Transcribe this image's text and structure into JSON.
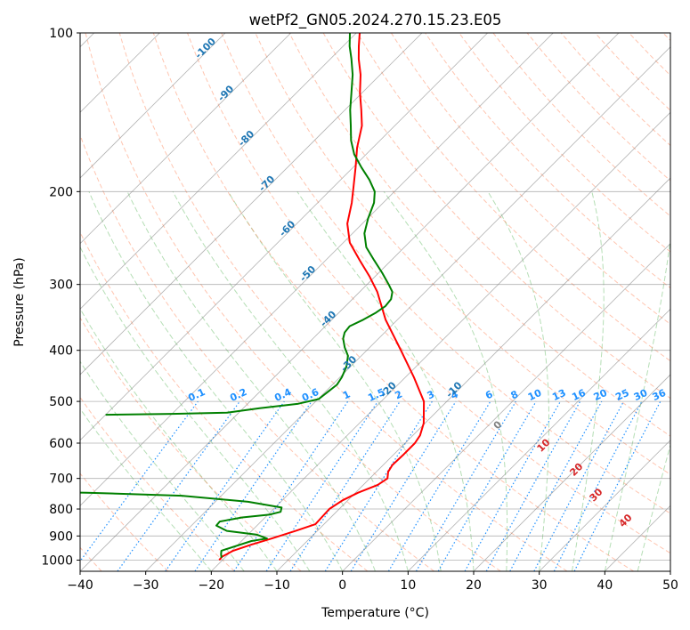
{
  "chart_data": {
    "type": "line",
    "title": "wetPf2_GN05.2024.270.15.23.E05",
    "xlabel": "Temperature (°C)",
    "ylabel": "Pressure (hPa)",
    "xlim": [
      -40,
      50
    ],
    "ylim": [
      1050,
      100
    ],
    "y_scale": "log",
    "skew": "skew-T",
    "grid": true,
    "x_ticks": [
      -40,
      -30,
      -20,
      -10,
      0,
      10,
      20,
      30,
      40,
      50
    ],
    "y_ticks": [
      100,
      200,
      300,
      400,
      500,
      600,
      700,
      800,
      900,
      1000
    ],
    "colors": {
      "temperature": "#ff0000",
      "dewpoint": "#008000",
      "dry_adiabat": "#ff7f50",
      "moist_adiabat": "#2ca02c",
      "mixing_ratio": "#1e90ff",
      "isotherm": "#808080",
      "dry_label": "#1f77b4",
      "moist_label": "#d62728"
    },
    "dry_adiabat_labels": [
      "-100",
      "-90",
      "-80",
      "-70",
      "-60",
      "-50",
      "-40",
      "-30",
      "-20",
      "-10"
    ],
    "mixing_ratio_labels": [
      "0.1",
      "0.2",
      "0.4",
      "0.6",
      "1",
      "1.5",
      "2",
      "3",
      "4",
      "6",
      "8",
      "10",
      "13",
      "16",
      "20",
      "25",
      "30",
      "36"
    ],
    "moist_adiabat_labels": [
      "0",
      "10",
      "20",
      "30",
      "40"
    ],
    "series": [
      {
        "key": "temperature",
        "points": [
          [
            -20.5,
            1000
          ],
          [
            -20.6,
            985
          ],
          [
            -19.8,
            960
          ],
          [
            -18.0,
            935
          ],
          [
            -15.8,
            910
          ],
          [
            -13.3,
            880
          ],
          [
            -11.3,
            855
          ],
          [
            -11.4,
            830
          ],
          [
            -11.5,
            800
          ],
          [
            -10.8,
            770
          ],
          [
            -9.6,
            745
          ],
          [
            -7.8,
            720
          ],
          [
            -7.3,
            700
          ],
          [
            -8.2,
            680
          ],
          [
            -8.6,
            660
          ],
          [
            -8.5,
            630
          ],
          [
            -8.5,
            600
          ],
          [
            -8.9,
            580
          ],
          [
            -10.2,
            550
          ],
          [
            -13.5,
            500
          ],
          [
            -18.7,
            450
          ],
          [
            -24.8,
            400
          ],
          [
            -31.8,
            350
          ],
          [
            -37.3,
            310
          ],
          [
            -40.8,
            290
          ],
          [
            -44.8,
            270
          ],
          [
            -49.0,
            250
          ],
          [
            -52.3,
            230
          ],
          [
            -54.8,
            210
          ],
          [
            -57.1,
            195
          ],
          [
            -59.6,
            180
          ],
          [
            -62.4,
            165
          ],
          [
            -65.0,
            150
          ],
          [
            -67.5,
            140
          ],
          [
            -70.3,
            130
          ],
          [
            -73.0,
            120
          ],
          [
            -75.7,
            112
          ],
          [
            -77.6,
            106
          ],
          [
            -79.5,
            100
          ]
        ]
      },
      {
        "key": "dewpoint",
        "points": [
          [
            -20.5,
            990
          ],
          [
            -21.1,
            975
          ],
          [
            -21.6,
            960
          ],
          [
            -18.5,
            920
          ],
          [
            -16.5,
            910
          ],
          [
            -18.6,
            895
          ],
          [
            -23.8,
            880
          ],
          [
            -26.2,
            860
          ],
          [
            -26.3,
            845
          ],
          [
            -23.5,
            830
          ],
          [
            -19.8,
            820
          ],
          [
            -18.5,
            810
          ],
          [
            -19.0,
            795
          ],
          [
            -25.0,
            775
          ],
          [
            -36.0,
            755
          ],
          [
            -51.0,
            745
          ],
          [
            -70.0,
            740
          ],
          [
            -79.0,
            740
          ]
        ]
      },
      {
        "key": "dewpoint",
        "points": [
          [
            -60.0,
            530
          ],
          [
            -50.0,
            528
          ],
          [
            -41.8,
            525
          ],
          [
            -37.5,
            515
          ],
          [
            -32.3,
            505
          ],
          [
            -29.9,
            495
          ],
          [
            -29.6,
            480
          ],
          [
            -29.3,
            465
          ],
          [
            -29.7,
            450
          ],
          [
            -30.6,
            430
          ],
          [
            -32.0,
            410
          ],
          [
            -33.8,
            395
          ],
          [
            -35.4,
            380
          ],
          [
            -36.1,
            370
          ],
          [
            -36.3,
            360
          ],
          [
            -35.2,
            350
          ],
          [
            -34.4,
            340
          ],
          [
            -33.9,
            330
          ],
          [
            -34.1,
            320
          ],
          [
            -35.0,
            310
          ],
          [
            -36.7,
            300
          ],
          [
            -39.5,
            285
          ],
          [
            -42.6,
            270
          ],
          [
            -45.8,
            255
          ],
          [
            -48.2,
            240
          ],
          [
            -49.9,
            225
          ],
          [
            -51.4,
            210
          ],
          [
            -53.0,
            200
          ],
          [
            -55.6,
            190
          ],
          [
            -58.7,
            180
          ],
          [
            -61.8,
            170
          ],
          [
            -64.4,
            160
          ],
          [
            -66.7,
            150
          ],
          [
            -69.2,
            140
          ],
          [
            -71.6,
            130
          ],
          [
            -74.2,
            120
          ],
          [
            -76.8,
            112
          ],
          [
            -79.0,
            106
          ],
          [
            -81.0,
            100
          ]
        ]
      }
    ]
  }
}
